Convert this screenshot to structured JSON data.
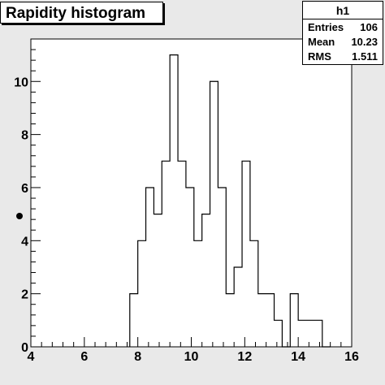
{
  "title": "Rapidity histogram",
  "stats": {
    "name": "h1",
    "rows": [
      {
        "key": "Entries",
        "value": "106"
      },
      {
        "key": "Mean",
        "value": "10.23"
      },
      {
        "key": "RMS",
        "value": "1.511"
      }
    ]
  },
  "chart_data": {
    "type": "bar",
    "title": "Rapidity histogram",
    "xlabel": "",
    "ylabel": "",
    "xlim": [
      4,
      16
    ],
    "ylim": [
      0,
      11.6
    ],
    "grid": false,
    "x_ticks": [
      "4",
      "6",
      "8",
      "10",
      "12",
      "14",
      "16"
    ],
    "y_ticks": [
      "0",
      "2",
      "4",
      "6",
      "8",
      "10"
    ],
    "bins": [
      {
        "x0": 7.7,
        "x1": 8.0,
        "value": 2
      },
      {
        "x0": 8.0,
        "x1": 8.3,
        "value": 4
      },
      {
        "x0": 8.3,
        "x1": 8.6,
        "value": 6
      },
      {
        "x0": 8.6,
        "x1": 8.9,
        "value": 5
      },
      {
        "x0": 8.9,
        "x1": 9.2,
        "value": 7
      },
      {
        "x0": 9.2,
        "x1": 9.5,
        "value": 11
      },
      {
        "x0": 9.5,
        "x1": 9.8,
        "value": 7
      },
      {
        "x0": 9.8,
        "x1": 10.1,
        "value": 6
      },
      {
        "x0": 10.1,
        "x1": 10.4,
        "value": 4
      },
      {
        "x0": 10.4,
        "x1": 10.7,
        "value": 5
      },
      {
        "x0": 10.7,
        "x1": 11.0,
        "value": 10
      },
      {
        "x0": 11.0,
        "x1": 11.3,
        "value": 6
      },
      {
        "x0": 11.3,
        "x1": 11.6,
        "value": 2
      },
      {
        "x0": 11.6,
        "x1": 11.9,
        "value": 3
      },
      {
        "x0": 11.9,
        "x1": 12.2,
        "value": 7
      },
      {
        "x0": 12.2,
        "x1": 12.5,
        "value": 4
      },
      {
        "x0": 12.5,
        "x1": 12.8,
        "value": 2
      },
      {
        "x0": 12.8,
        "x1": 13.1,
        "value": 2
      },
      {
        "x0": 13.1,
        "x1": 13.4,
        "value": 1
      },
      {
        "x0": 13.4,
        "x1": 13.7,
        "value": 0
      },
      {
        "x0": 13.7,
        "x1": 14.0,
        "value": 2
      },
      {
        "x0": 14.0,
        "x1": 14.3,
        "value": 1
      },
      {
        "x0": 14.3,
        "x1": 14.6,
        "value": 1
      },
      {
        "x0": 14.6,
        "x1": 14.9,
        "value": 1
      },
      {
        "x0": 14.9,
        "x1": 15.2,
        "value": 0
      }
    ]
  }
}
